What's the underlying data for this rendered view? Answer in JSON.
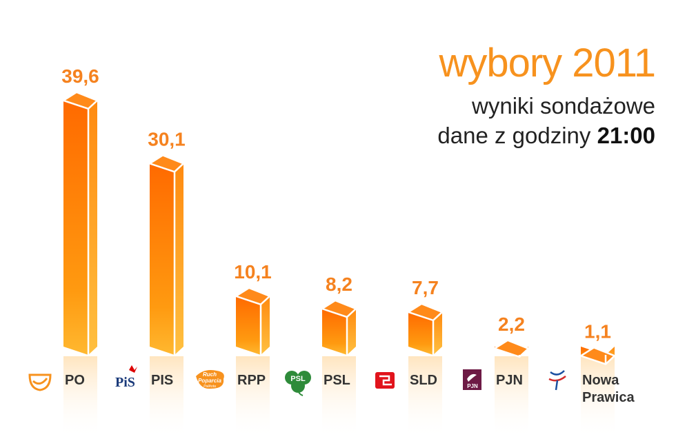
{
  "header": {
    "title": "wybory 2011",
    "subtitle": "wyniki sondażowe",
    "time_prefix": "dane z godziny",
    "time": "21:00"
  },
  "colors": {
    "accent": "#f7921e",
    "bar_front": "#ff7f00",
    "bar_light": "#ffb43a",
    "label": "#f5821f"
  },
  "chart_data": {
    "type": "bar",
    "categories": [
      "PO",
      "PIS",
      "RPP",
      "PSL",
      "SLD",
      "PJN",
      "Nowa Prawica"
    ],
    "values": [
      39.6,
      30.1,
      10.1,
      8.2,
      7.7,
      2.2,
      1.1
    ],
    "value_labels": [
      "39,6",
      "30,1",
      "10,1",
      "8,2",
      "7,7",
      "2,2",
      "1,1"
    ],
    "logos": [
      "po-logo-icon",
      "pis-logo-icon",
      "rpp-logo-icon",
      "psl-logo-icon",
      "sld-logo-icon",
      "pjn-logo-icon",
      "nowa-prawica-logo-icon"
    ],
    "logo_texts": [
      "",
      "PiS",
      "Ruch Poparcia Palikota",
      "PSL",
      "",
      "PJN",
      ""
    ],
    "title": "wybory 2011",
    "xlabel": "",
    "ylabel": "",
    "ylim": [
      0,
      40
    ],
    "grid": false,
    "legend": "none"
  }
}
